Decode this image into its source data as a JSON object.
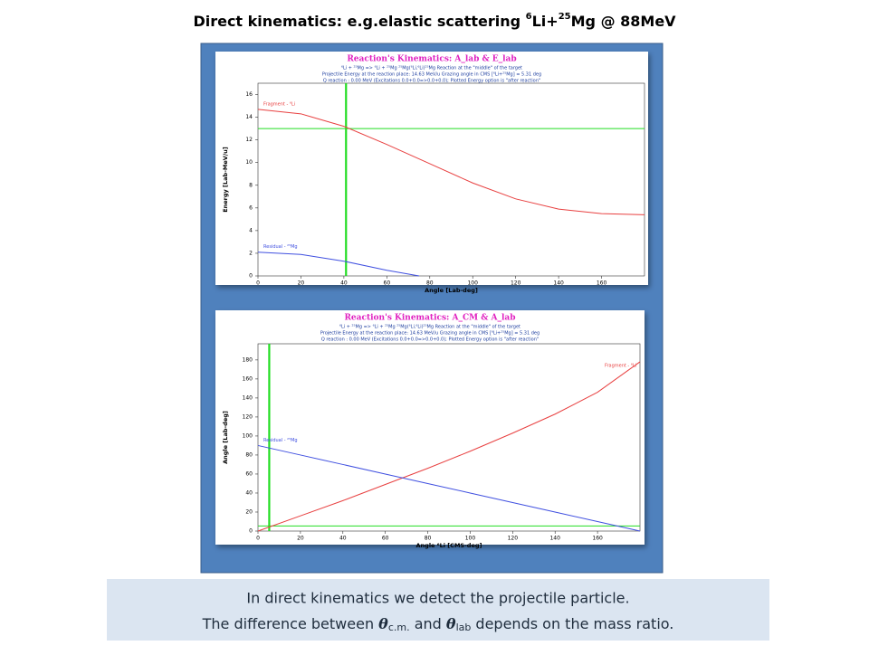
{
  "slide": {
    "title_parts": [
      "Direct kinematics: e.g.elastic scattering ",
      "6",
      "Li+",
      "25",
      "Mg @ 88MeV"
    ],
    "caption_line1": "In direct kinematics we detect the projectile particle.",
    "caption_line2_parts": [
      "The difference between ",
      "θ",
      "c.m.",
      " and ",
      "θ",
      "lab",
      " depends on the mass ratio."
    ]
  },
  "chart_data": [
    {
      "type": "line",
      "title": "Reaction's Kinematics:  A_lab  &  E_lab",
      "subtitle": [
        "⁶Li + ²⁵Mg => ⁶Li + ²⁵Mg     ²⁵Mg(⁶Li,⁶Li)²⁵Mg    Reaction at the \"middle\" of the target",
        "Projectile Energy at the reaction place:  14.63 MeV/u      Grazing angle in CMS [⁶Li+²⁵Mg] = 5.31 deg",
        "Q reaction :  0.00 MeV  (Excitations 0.0+0.0=>0.0+0.0);   Plotted Energy option is \"after reaction\""
      ],
      "x_label": "Angle [Lab-deg]",
      "y_label": "Energy [Lab-MeV/u]",
      "xlim": [
        0,
        180
      ],
      "xticks": [
        0,
        20,
        40,
        60,
        80,
        100,
        120,
        140,
        160
      ],
      "ylim": [
        0,
        17
      ],
      "yticks": [
        0,
        2,
        4,
        6,
        8,
        10,
        12,
        14,
        16
      ],
      "ref_lines": {
        "x": 41,
        "y": 13,
        "color": "#22dd22"
      },
      "series": [
        {
          "name": "Fragment - ⁶Li",
          "color": "#e84040",
          "x": [
            0,
            20,
            40,
            60,
            80,
            100,
            120,
            140,
            160,
            180
          ],
          "values": [
            14.7,
            14.3,
            13.2,
            11.6,
            9.9,
            8.2,
            6.8,
            5.9,
            5.5,
            5.4
          ]
        },
        {
          "name": "Residual - ²⁵Mg",
          "color": "#4050e0",
          "x": [
            0,
            20,
            40,
            60,
            75
          ],
          "values": [
            2.1,
            1.9,
            1.3,
            0.5,
            0
          ]
        }
      ]
    },
    {
      "type": "line",
      "title": "Reaction's Kinematics:  A_CM  &  A_lab",
      "subtitle": [
        "⁶Li + ²⁵Mg => ⁶Li + ²⁵Mg     ²⁵Mg(⁶Li,⁶Li)²⁵Mg    Reaction at the \"middle\" of the target",
        "Projectile Energy at the reaction place:  14.63 MeV/u      Grazing angle in CMS [⁶Li+²⁵Mg] = 5.31 deg",
        "Q reaction :  0.00 MeV  (Excitations 0.0+0.0=>0.0+0.0);   Plotted Energy option is \"after reaction\""
      ],
      "x_label": "Angle ⁶Li [CMS-deg]",
      "y_label": "Angle [Lab-deg]",
      "xlim": [
        0,
        180
      ],
      "xticks": [
        0,
        20,
        40,
        60,
        80,
        100,
        120,
        140,
        160
      ],
      "ylim": [
        0,
        197
      ],
      "yticks": [
        0,
        20,
        40,
        60,
        80,
        100,
        120,
        140,
        160,
        180
      ],
      "ref_lines": {
        "x": 5.3,
        "y": 5.3,
        "color": "#22dd22"
      },
      "series": [
        {
          "name": "Fragment - ⁶Li",
          "color": "#e84040",
          "x": [
            0,
            20,
            40,
            60,
            80,
            100,
            120,
            140,
            160,
            180
          ],
          "values": [
            0,
            16,
            32,
            49,
            66,
            84,
            103,
            123,
            146,
            178
          ]
        },
        {
          "name": "Residual - ²⁵Mg",
          "color": "#4050e0",
          "x": [
            0,
            20,
            40,
            60,
            80,
            100,
            120,
            140,
            160,
            180
          ],
          "values": [
            90,
            80,
            70,
            60,
            50,
            40,
            30,
            20,
            10,
            0
          ]
        }
      ]
    }
  ]
}
